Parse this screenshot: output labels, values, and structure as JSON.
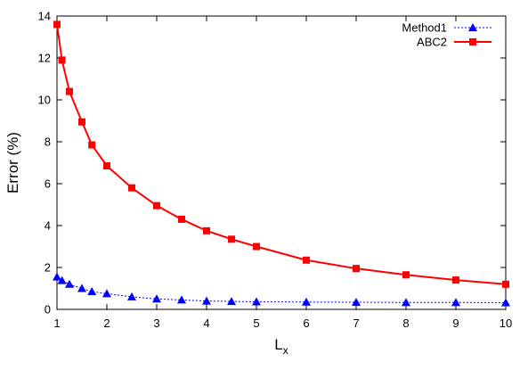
{
  "chart_data": {
    "type": "line",
    "title": "",
    "xlabel": "L",
    "xlabel_subscript": "x",
    "ylabel": "Error (%)",
    "xlim": [
      1,
      10
    ],
    "ylim": [
      0,
      14
    ],
    "x_ticks": [
      "1",
      "2",
      "3",
      "4",
      "5",
      "6",
      "7",
      "8",
      "9",
      "10"
    ],
    "y_ticks": [
      "0",
      "2",
      "4",
      "6",
      "8",
      "10",
      "12",
      "14"
    ],
    "grid": false,
    "legend_position": "top-right",
    "series": [
      {
        "name": "Method1",
        "color": "#0000ff",
        "line_style": "dotted",
        "marker": "triangle",
        "x": [
          1,
          1.1,
          1.25,
          1.5,
          1.7,
          2,
          2.5,
          3,
          3.5,
          4,
          4.5,
          5,
          6,
          7,
          8,
          9,
          10
        ],
        "values": [
          1.55,
          1.38,
          1.2,
          1.0,
          0.85,
          0.75,
          0.6,
          0.5,
          0.45,
          0.4,
          0.38,
          0.36,
          0.35,
          0.34,
          0.33,
          0.33,
          0.32
        ]
      },
      {
        "name": "ABC2",
        "color": "#ff0000",
        "line_style": "solid",
        "marker": "square",
        "x": [
          1,
          1.1,
          1.25,
          1.5,
          1.7,
          2,
          2.5,
          3,
          3.5,
          4,
          4.5,
          5,
          6,
          7,
          8,
          9,
          10
        ],
        "values": [
          13.6,
          11.9,
          10.4,
          8.95,
          7.85,
          6.85,
          5.8,
          4.95,
          4.3,
          3.75,
          3.35,
          3.0,
          2.35,
          1.95,
          1.65,
          1.4,
          1.2
        ]
      }
    ]
  }
}
